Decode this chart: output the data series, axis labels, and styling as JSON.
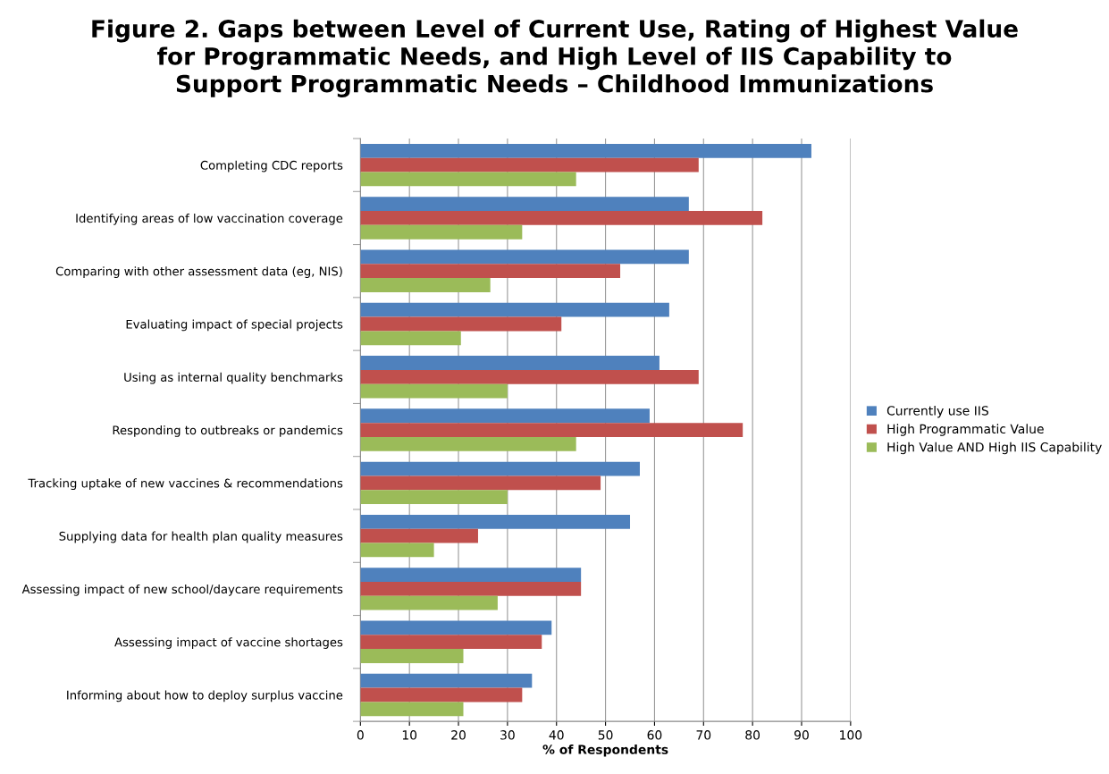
{
  "chart_data": {
    "type": "bar",
    "orientation": "horizontal",
    "title": "Figure 2. Gaps between Level of Current Use, Rating of Highest Value\nfor Programmatic Needs, and High Level of IIS Capability to\nSupport Programmatic Needs – Childhood Immunizations",
    "xlabel": "% of Respondents",
    "categories": [
      "Completing CDC reports",
      "Identifying areas of low vaccination coverage",
      "Comparing with other assessment data (eg, NIS)",
      "Evaluating impact of special projects",
      "Using as internal quality benchmarks",
      "Responding to outbreaks or pandemics",
      "Tracking uptake of new vaccines & recommendations",
      "Supplying data for health plan quality measures",
      "Assessing impact of new school/daycare requirements",
      "Assessing impact of vaccine shortages",
      "Informing about how to deploy surplus vaccine"
    ],
    "series": [
      {
        "name": "Currently use IIS",
        "color": "#4f81bd",
        "values": [
          92,
          67,
          67,
          63,
          61,
          59,
          57,
          55,
          45,
          39,
          35
        ]
      },
      {
        "name": "High Programmatic Value",
        "color": "#c0504d",
        "values": [
          69,
          82,
          53,
          41,
          69,
          78,
          49,
          24,
          45,
          37,
          33
        ]
      },
      {
        "name": "High Value AND High IIS Capability",
        "color": "#9bbb59",
        "values": [
          44,
          33,
          26.5,
          20.5,
          30,
          44,
          30,
          15,
          28,
          21,
          21
        ]
      }
    ],
    "xlim": [
      0,
      100
    ],
    "xticks": [
      0,
      10,
      20,
      30,
      40,
      50,
      60,
      70,
      80,
      90,
      100
    ],
    "grid": "x",
    "legend": "right"
  }
}
